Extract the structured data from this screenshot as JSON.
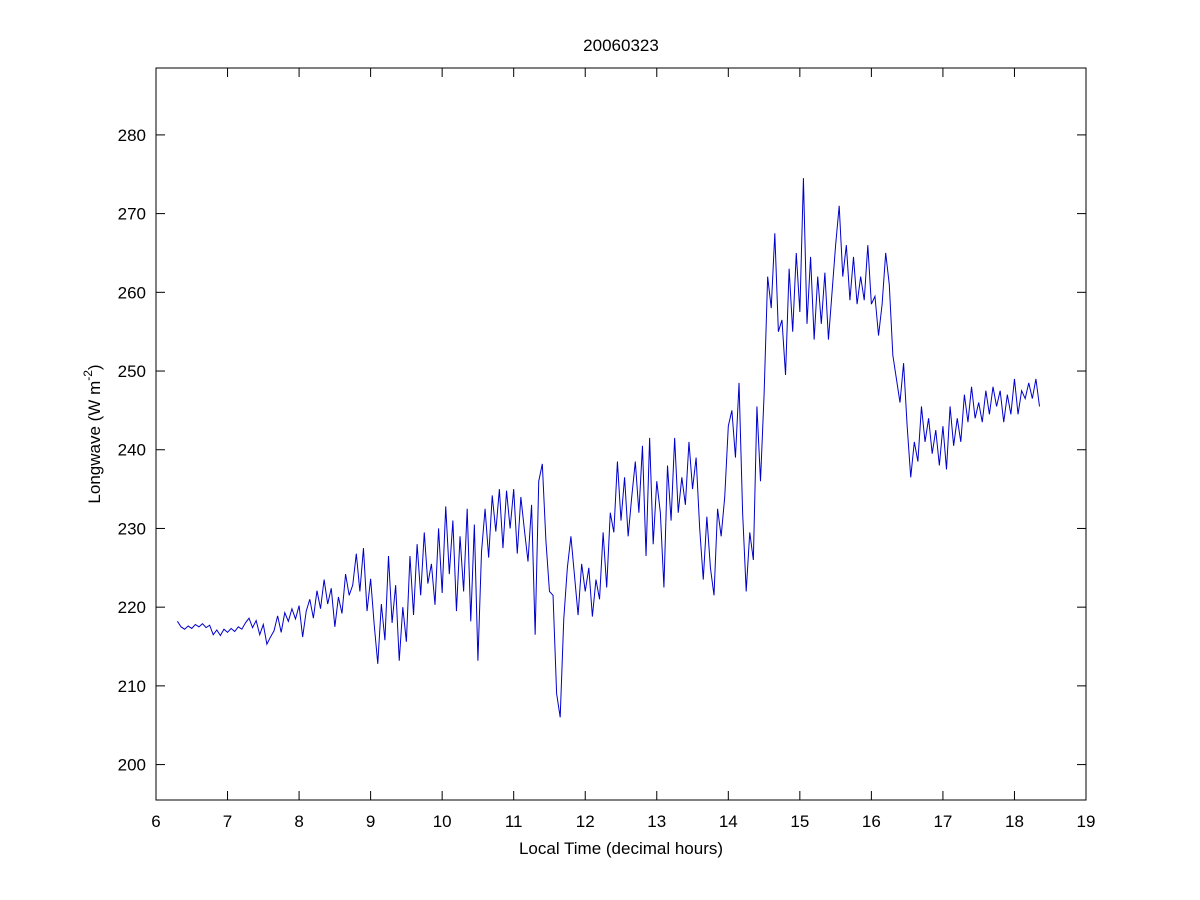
{
  "chart_data": {
    "type": "line",
    "title": "20060323",
    "xlabel": "Local Time (decimal hours)",
    "ylabel": [
      "Longwave (W m",
      "-2",
      ")"
    ],
    "x": [
      6.3,
      6.35,
      6.4,
      6.45,
      6.5,
      6.55,
      6.6,
      6.65,
      6.7,
      6.75,
      6.8,
      6.85,
      6.9,
      6.95,
      7.0,
      7.05,
      7.1,
      7.15,
      7.2,
      7.25,
      7.3,
      7.35,
      7.4,
      7.45,
      7.5,
      7.55,
      7.6,
      7.65,
      7.7,
      7.75,
      7.8,
      7.85,
      7.9,
      7.95,
      8.0,
      8.05,
      8.1,
      8.15,
      8.2,
      8.25,
      8.3,
      8.35,
      8.4,
      8.45,
      8.5,
      8.55,
      8.6,
      8.65,
      8.7,
      8.75,
      8.8,
      8.85,
      8.9,
      8.95,
      9.0,
      9.05,
      9.1,
      9.15,
      9.2,
      9.25,
      9.3,
      9.35,
      9.4,
      9.45,
      9.5,
      9.55,
      9.6,
      9.65,
      9.7,
      9.75,
      9.8,
      9.85,
      9.9,
      9.95,
      10.0,
      10.05,
      10.1,
      10.15,
      10.2,
      10.25,
      10.3,
      10.35,
      10.4,
      10.45,
      10.5,
      10.55,
      10.6,
      10.65,
      10.7,
      10.75,
      10.8,
      10.85,
      10.9,
      10.95,
      11.0,
      11.05,
      11.1,
      11.15,
      11.2,
      11.25,
      11.3,
      11.35,
      11.4,
      11.45,
      11.5,
      11.55,
      11.6,
      11.65,
      11.7,
      11.75,
      11.8,
      11.85,
      11.9,
      11.95,
      12.0,
      12.05,
      12.1,
      12.15,
      12.2,
      12.25,
      12.3,
      12.35,
      12.4,
      12.45,
      12.5,
      12.55,
      12.6,
      12.65,
      12.7,
      12.75,
      12.8,
      12.85,
      12.9,
      12.95,
      13.0,
      13.05,
      13.1,
      13.15,
      13.2,
      13.25,
      13.3,
      13.35,
      13.4,
      13.45,
      13.5,
      13.55,
      13.6,
      13.65,
      13.7,
      13.75,
      13.8,
      13.85,
      13.9,
      13.95,
      14.0,
      14.05,
      14.1,
      14.15,
      14.2,
      14.25,
      14.3,
      14.35,
      14.4,
      14.45,
      14.5,
      14.55,
      14.6,
      14.65,
      14.7,
      14.75,
      14.8,
      14.85,
      14.9,
      14.95,
      15.0,
      15.05,
      15.1,
      15.15,
      15.2,
      15.25,
      15.3,
      15.35,
      15.4,
      15.45,
      15.5,
      15.55,
      15.6,
      15.65,
      15.7,
      15.75,
      15.8,
      15.85,
      15.9,
      15.95,
      16.0,
      16.05,
      16.1,
      16.15,
      16.2,
      16.25,
      16.3,
      16.35,
      16.4,
      16.45,
      16.5,
      16.55,
      16.6,
      16.65,
      16.7,
      16.75,
      16.8,
      16.85,
      16.9,
      16.95,
      17.0,
      17.05,
      17.1,
      17.15,
      17.2,
      17.25,
      17.3,
      17.35,
      17.4,
      17.45,
      17.5,
      17.55,
      17.6,
      17.65,
      17.7,
      17.75,
      17.8,
      17.85,
      17.9,
      17.95,
      18.0,
      18.05,
      18.1,
      18.15,
      18.2,
      18.25,
      18.3,
      18.35
    ],
    "series": [
      {
        "color": "#0000cc",
        "values": [
          218.2,
          217.5,
          217.2,
          217.6,
          217.3,
          217.8,
          217.5,
          217.9,
          217.4,
          217.7,
          216.5,
          217.1,
          216.4,
          217.2,
          216.8,
          217.3,
          216.9,
          217.5,
          217.2,
          218.0,
          218.6,
          217.4,
          218.3,
          216.5,
          217.8,
          215.3,
          216.2,
          217.0,
          218.9,
          216.8,
          219.3,
          218.2,
          219.8,
          218.5,
          220.2,
          216.2,
          219.5,
          221.0,
          218.6,
          222.1,
          219.8,
          223.5,
          220.4,
          222.4,
          217.5,
          221.3,
          219.2,
          224.2,
          221.5,
          222.8,
          226.8,
          222.0,
          227.5,
          219.5,
          223.6,
          217.8,
          212.8,
          220.4,
          215.8,
          226.5,
          218.0,
          222.8,
          213.2,
          220.0,
          215.6,
          226.5,
          219.0,
          228.0,
          221.5,
          229.5,
          223.0,
          225.5,
          220.3,
          230.0,
          221.8,
          232.8,
          224.2,
          231.0,
          219.5,
          229.0,
          222.0,
          232.5,
          218.2,
          230.5,
          213.2,
          227.0,
          232.5,
          226.3,
          234.2,
          229.6,
          235.0,
          227.5,
          234.8,
          230.0,
          235.0,
          226.8,
          234.0,
          229.8,
          225.8,
          233.0,
          216.5,
          236.0,
          238.2,
          228.5,
          222.0,
          221.5,
          209.0,
          206.0,
          218.5,
          225.0,
          229.0,
          224.0,
          219.0,
          225.5,
          222.0,
          225.0,
          218.8,
          223.5,
          221.0,
          229.5,
          222.5,
          232.0,
          229.5,
          238.5,
          231.0,
          236.5,
          229.0,
          234.0,
          238.5,
          232.0,
          240.5,
          226.5,
          241.5,
          228.0,
          236.0,
          232.0,
          222.5,
          238.0,
          231.0,
          241.5,
          232.0,
          236.5,
          233.0,
          241.0,
          235.0,
          239.0,
          230.0,
          223.5,
          231.5,
          225.0,
          221.5,
          232.5,
          229.0,
          234.0,
          243.0,
          245.0,
          239.0,
          248.5,
          232.0,
          222.0,
          229.5,
          226.0,
          245.5,
          236.0,
          247.0,
          262.0,
          258.0,
          267.5,
          255.0,
          256.5,
          249.5,
          263.0,
          255.0,
          265.0,
          257.5,
          274.5,
          256.0,
          264.5,
          254.0,
          262.0,
          256.0,
          262.5,
          254.0,
          260.0,
          266.0,
          271.0,
          262.0,
          266.0,
          259.0,
          264.5,
          258.5,
          262.0,
          259.0,
          266.0,
          258.5,
          259.5,
          254.5,
          258.5,
          265.0,
          261.0,
          252.0,
          249.0,
          246.0,
          251.0,
          243.0,
          236.5,
          241.0,
          238.5,
          245.5,
          241.0,
          244.0,
          239.5,
          242.5,
          238.0,
          243.0,
          237.5,
          245.5,
          240.5,
          244.0,
          241.0,
          247.0,
          243.5,
          248.0,
          244.0,
          246.0,
          243.5,
          247.5,
          244.5,
          248.0,
          245.5,
          247.5,
          243.5,
          247.0,
          244.5,
          249.0,
          244.5,
          247.5,
          246.5,
          248.5,
          246.5,
          249.0,
          245.5
        ]
      }
    ],
    "xlim": [
      6,
      19
    ],
    "xticks": [
      6,
      7,
      8,
      9,
      10,
      11,
      12,
      13,
      14,
      15,
      16,
      17,
      18,
      19
    ],
    "ylim": [
      195.5,
      288.5
    ],
    "yticks": [
      200,
      210,
      220,
      230,
      240,
      250,
      260,
      270,
      280
    ],
    "grid": false
  }
}
